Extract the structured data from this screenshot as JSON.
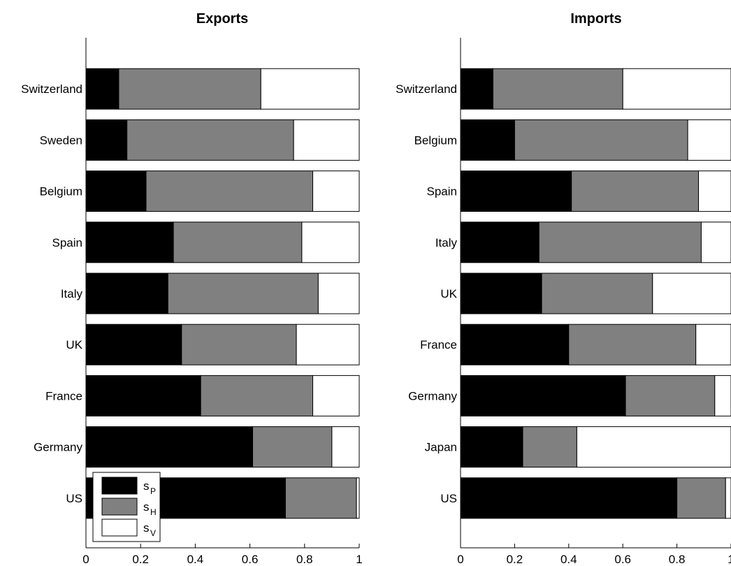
{
  "legend": {
    "entries": [
      {
        "main": "s",
        "sub": "P",
        "color": "#000000"
      },
      {
        "main": "s",
        "sub": "H",
        "color": "#808080"
      },
      {
        "main": "s",
        "sub": "V",
        "color": "#ffffff"
      }
    ]
  },
  "chart_data": [
    {
      "type": "bar",
      "orientation": "horizontal",
      "stacked": true,
      "title": "Exports",
      "xlim": [
        0,
        1
      ],
      "xticks": [
        "0",
        "0.2",
        "0.4",
        "0.6",
        "0.8",
        "1"
      ],
      "categories": [
        "Switzerland",
        "Sweden",
        "Belgium",
        "Spain",
        "Italy",
        "UK",
        "France",
        "Germany",
        "US"
      ],
      "series": [
        {
          "name": "sP",
          "color": "#000000",
          "values": [
            0.12,
            0.15,
            0.22,
            0.32,
            0.3,
            0.35,
            0.42,
            0.61,
            0.73
          ]
        },
        {
          "name": "sH",
          "color": "#808080",
          "values": [
            0.52,
            0.61,
            0.61,
            0.47,
            0.55,
            0.42,
            0.41,
            0.29,
            0.26
          ]
        },
        {
          "name": "sV",
          "color": "#ffffff",
          "values": [
            0.36,
            0.24,
            0.17,
            0.21,
            0.15,
            0.23,
            0.17,
            0.1,
            0.01
          ]
        }
      ],
      "legend_position": "bottom-left",
      "grid": false
    },
    {
      "type": "bar",
      "orientation": "horizontal",
      "stacked": true,
      "title": "Imports",
      "xlim": [
        0,
        1
      ],
      "xticks": [
        "0",
        "0.2",
        "0.4",
        "0.6",
        "0.8",
        "1"
      ],
      "categories": [
        "Switzerland",
        "Belgium",
        "Spain",
        "Italy",
        "UK",
        "France",
        "Germany",
        "Japan",
        "US"
      ],
      "series": [
        {
          "name": "sP",
          "color": "#000000",
          "values": [
            0.12,
            0.2,
            0.41,
            0.29,
            0.3,
            0.4,
            0.61,
            0.23,
            0.8
          ]
        },
        {
          "name": "sH",
          "color": "#808080",
          "values": [
            0.48,
            0.64,
            0.47,
            0.6,
            0.41,
            0.47,
            0.33,
            0.2,
            0.18
          ]
        },
        {
          "name": "sV",
          "color": "#ffffff",
          "values": [
            0.4,
            0.16,
            0.12,
            0.11,
            0.29,
            0.13,
            0.06,
            0.57,
            0.02
          ]
        }
      ],
      "grid": false
    }
  ]
}
